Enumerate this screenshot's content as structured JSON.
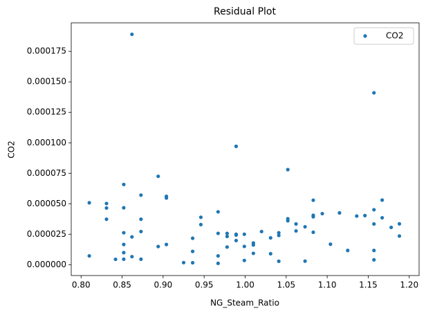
{
  "chart_data": {
    "type": "scatter",
    "title": "Residual Plot",
    "xlabel": "NG_Steam_Ratio",
    "ylabel": "CO2",
    "x": [
      0.81,
      0.81,
      0.831,
      0.831,
      0.831,
      0.842,
      0.852,
      0.852,
      0.852,
      0.852,
      0.852,
      0.852,
      0.862,
      0.862,
      0.862,
      0.873,
      0.873,
      0.873,
      0.873,
      0.894,
      0.894,
      0.904,
      0.904,
      0.904,
      0.925,
      0.936,
      0.936,
      0.936,
      0.946,
      0.946,
      0.967,
      0.967,
      0.967,
      0.967,
      0.978,
      0.978,
      0.978,
      0.989,
      0.989,
      0.989,
      0.989,
      0.999,
      0.999,
      0.999,
      1.01,
      1.01,
      1.01,
      1.02,
      1.031,
      1.031,
      1.041,
      1.041,
      1.041,
      1.052,
      1.052,
      1.052,
      1.062,
      1.062,
      1.073,
      1.073,
      1.083,
      1.083,
      1.083,
      1.083,
      1.094,
      1.104,
      1.115,
      1.125,
      1.136,
      1.146,
      1.157,
      1.157,
      1.157,
      1.157,
      1.157,
      1.167,
      1.167,
      1.178,
      1.188,
      1.188
    ],
    "series": [
      {
        "name": "CO2",
        "color": "#1f77b4",
        "values": [
          5.08e-05,
          7.2e-06,
          5.02e-05,
          4.65e-05,
          3.73e-05,
          4.4e-06,
          6.58e-05,
          4.67e-05,
          2.62e-05,
          1.66e-05,
          9.9e-06,
          4.5e-06,
          0.000189,
          2.28e-05,
          6.6e-06,
          5.71e-05,
          3.73e-05,
          2.72e-05,
          4.5e-06,
          7.25e-05,
          1.49e-05,
          5.61e-05,
          5.47e-05,
          1.66e-05,
          1.7e-06,
          2.17e-05,
          1.09e-05,
          1.6e-06,
          3.89e-05,
          3.29e-05,
          4.34e-05,
          2.57e-05,
          7.2e-06,
          1.1e-06,
          2.57e-05,
          2.32e-05,
          1.45e-05,
          9.71e-05,
          2.5e-05,
          2.43e-05,
          1.98e-05,
          2.5e-05,
          1.5e-05,
          3.5e-06,
          1.78e-05,
          1.62e-05,
          9.3e-06,
          2.72e-05,
          2.2e-05,
          9e-06,
          2.62e-05,
          2.4e-05,
          2.8e-06,
          7.8e-05,
          3.77e-05,
          3.6e-05,
          3.34e-05,
          2.77e-05,
          3.11e-05,
          2.9e-06,
          5.29e-05,
          4.05e-05,
          3.93e-05,
          2.66e-05,
          4.19e-05,
          1.68e-05,
          4.25e-05,
          1.17e-05,
          3.99e-05,
          4.03e-05,
          0.000141,
          4.51e-05,
          3.34e-05,
          1.17e-05,
          4e-06,
          5.3e-05,
          3.85e-05,
          3.06e-05,
          3.35e-05,
          2.35e-05
        ]
      }
    ],
    "xlim": [
      0.788,
      1.212
    ],
    "xticks": [
      {
        "value": 0.8,
        "label": "0.80"
      },
      0.85,
      {
        "value": 0.9,
        "label": "0.90"
      },
      0.95,
      {
        "value": 1.0,
        "label": "1.00"
      },
      1.05,
      {
        "value": 1.1,
        "label": "1.10"
      },
      1.15,
      {
        "value": 1.2,
        "label": "1.20"
      }
    ],
    "ylim": [
      -8.9e-06,
      0.0001984
    ],
    "yticks": [
      {
        "value": 0,
        "label": "0.000000"
      },
      2.5e-05,
      {
        "value": 5e-05,
        "label": "0.000050"
      },
      7.5e-05,
      {
        "value": 0.0001,
        "label": "0.000100"
      },
      0.000125,
      {
        "value": 0.00015,
        "label": "0.000150"
      },
      0.000175
    ],
    "legend": "upper right",
    "grid": false
  }
}
